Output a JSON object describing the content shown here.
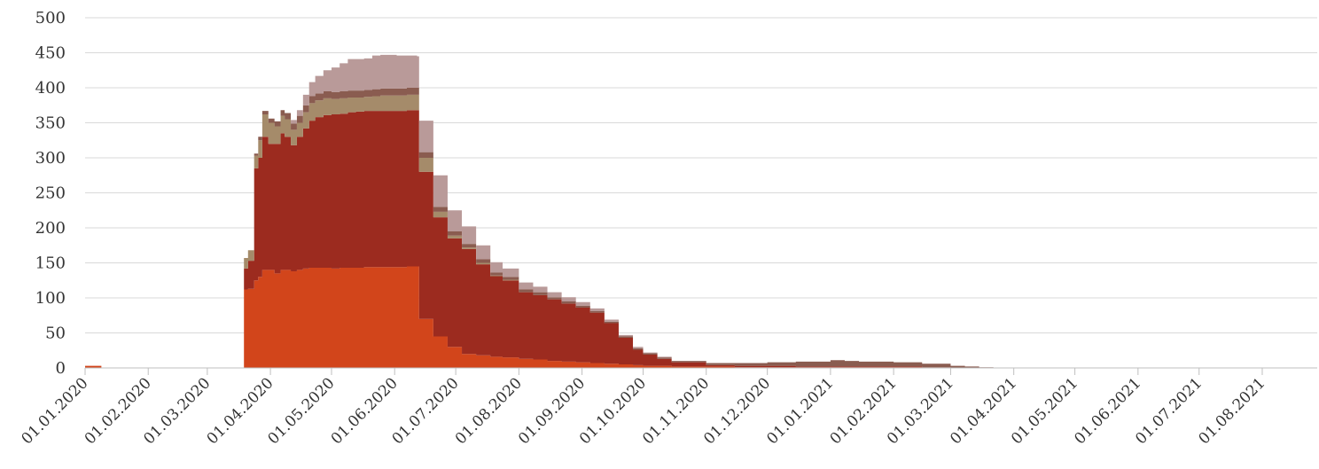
{
  "chart_data": {
    "type": "area",
    "stacked": true,
    "grid": true,
    "legend": "none",
    "x_axis_type": "date",
    "xlim": [
      "2020-01-01",
      "2021-08-28"
    ],
    "ylim": [
      0,
      500
    ],
    "y_ticks": [
      0,
      50,
      100,
      150,
      200,
      250,
      300,
      350,
      400,
      450,
      500
    ],
    "y_tick_labels": [
      "0",
      "50",
      "100",
      "150",
      "200",
      "250",
      "300",
      "350",
      "400",
      "450",
      "500"
    ],
    "x_ticks": [
      "2020-01-01",
      "2020-02-01",
      "2020-03-01",
      "2020-04-01",
      "2020-05-01",
      "2020-06-01",
      "2020-07-01",
      "2020-08-01",
      "2020-09-01",
      "2020-10-01",
      "2020-11-01",
      "2020-12-01",
      "2021-01-01",
      "2021-02-01",
      "2021-03-01",
      "2021-04-01",
      "2021-05-01",
      "2021-06-01",
      "2021-07-01",
      "2021-08-01"
    ],
    "x_tick_labels": [
      "01.01.2020",
      "01.02.2020",
      "01.03.2020",
      "01.04.2020",
      "01.05.2020",
      "01.06.2020",
      "01.07.2020",
      "01.08.2020",
      "01.09.2020",
      "01.10.2020",
      "01.11.2020",
      "01.12.2020",
      "01.01.2021",
      "01.02.2021",
      "01.03.2021",
      "01.04.2021",
      "01.05.2021",
      "01.06.2021",
      "01.07.2021",
      "01.08.2021"
    ],
    "x": [
      "2020-01-01",
      "2020-01-08",
      "2020-01-09",
      "2020-03-18",
      "2020-03-19",
      "2020-03-21",
      "2020-03-24",
      "2020-03-26",
      "2020-03-28",
      "2020-03-31",
      "2020-04-03",
      "2020-04-06",
      "2020-04-08",
      "2020-04-11",
      "2020-04-14",
      "2020-04-17",
      "2020-04-20",
      "2020-04-23",
      "2020-04-27",
      "2020-05-01",
      "2020-05-05",
      "2020-05-09",
      "2020-05-13",
      "2020-05-17",
      "2020-05-21",
      "2020-05-25",
      "2020-05-29",
      "2020-06-02",
      "2020-06-07",
      "2020-06-12",
      "2020-06-13",
      "2020-06-19",
      "2020-06-20",
      "2020-06-26",
      "2020-06-27",
      "2020-07-03",
      "2020-07-04",
      "2020-07-10",
      "2020-07-11",
      "2020-07-17",
      "2020-07-18",
      "2020-07-24",
      "2020-08-01",
      "2020-08-08",
      "2020-08-15",
      "2020-08-22",
      "2020-08-29",
      "2020-09-05",
      "2020-09-12",
      "2020-09-19",
      "2020-09-26",
      "2020-10-01",
      "2020-10-08",
      "2020-10-15",
      "2020-11-01",
      "2020-11-15",
      "2020-12-01",
      "2020-12-15",
      "2021-01-01",
      "2021-01-08",
      "2021-01-15",
      "2021-02-01",
      "2021-02-15",
      "2021-03-01",
      "2021-03-08",
      "2021-03-15",
      "2021-03-22",
      "2021-08-28"
    ],
    "series": [
      {
        "color": "#d2451b",
        "values": [
          3,
          3,
          0,
          0,
          112,
          113,
          125,
          130,
          140,
          140,
          135,
          140,
          140,
          138,
          140,
          142,
          143,
          143,
          143,
          142,
          143,
          143,
          143,
          144,
          144,
          144,
          144,
          144,
          145,
          145,
          70,
          70,
          45,
          45,
          30,
          30,
          20,
          20,
          18,
          18,
          16,
          15,
          13,
          12,
          10,
          9,
          8,
          7,
          6,
          5,
          4,
          3,
          3,
          2,
          2,
          1,
          1,
          1,
          1,
          1,
          1,
          1,
          0,
          0,
          0,
          0,
          0,
          0
        ]
      },
      {
        "color": "#9c2b1f",
        "values": [
          0,
          0,
          0,
          0,
          30,
          40,
          160,
          170,
          190,
          180,
          185,
          195,
          190,
          180,
          190,
          200,
          210,
          215,
          218,
          220,
          220,
          222,
          223,
          223,
          223,
          223,
          223,
          223,
          223,
          223,
          210,
          210,
          170,
          170,
          155,
          155,
          150,
          150,
          130,
          130,
          115,
          110,
          95,
          92,
          88,
          83,
          78,
          72,
          58,
          38,
          22,
          16,
          10,
          6,
          2,
          2,
          2,
          1,
          1,
          1,
          1,
          1,
          1,
          0,
          0,
          0,
          0,
          0
        ]
      },
      {
        "color": "#a58b6a",
        "values": [
          0,
          0,
          0,
          0,
          15,
          15,
          18,
          25,
          32,
          30,
          25,
          25,
          25,
          22,
          20,
          23,
          25,
          24,
          24,
          22,
          22,
          21,
          20,
          20,
          21,
          22,
          22,
          22,
          22,
          22,
          20,
          20,
          8,
          8,
          4,
          4,
          2,
          2,
          2,
          2,
          1,
          1,
          0,
          0,
          0,
          0,
          0,
          0,
          0,
          0,
          0,
          0,
          0,
          0,
          0,
          0,
          0,
          0,
          0,
          0,
          0,
          0,
          0,
          0,
          0,
          0,
          0,
          0
        ]
      },
      {
        "color": "#8a5c50",
        "values": [
          0,
          0,
          0,
          0,
          0,
          0,
          3,
          5,
          5,
          6,
          7,
          8,
          9,
          9,
          10,
          10,
          10,
          10,
          10,
          10,
          10,
          10,
          10,
          10,
          10,
          10,
          10,
          10,
          10,
          10,
          8,
          8,
          7,
          7,
          6,
          6,
          5,
          5,
          5,
          5,
          4,
          4,
          4,
          4,
          3,
          3,
          3,
          2,
          2,
          2,
          2,
          2,
          2,
          2,
          3,
          4,
          5,
          7,
          9,
          8,
          7,
          6,
          5,
          3,
          2,
          1,
          0,
          0
        ]
      },
      {
        "color": "#b99a99",
        "values": [
          0,
          0,
          0,
          0,
          0,
          0,
          0,
          0,
          0,
          0,
          0,
          0,
          0,
          5,
          8,
          15,
          20,
          25,
          30,
          35,
          40,
          45,
          45,
          45,
          48,
          48,
          48,
          47,
          46,
          45,
          45,
          45,
          45,
          45,
          30,
          30,
          25,
          25,
          20,
          20,
          15,
          12,
          10,
          8,
          7,
          6,
          5,
          4,
          3,
          2,
          2,
          1,
          1,
          0,
          0,
          0,
          0,
          0,
          0,
          0,
          0,
          0,
          0,
          0,
          0,
          0,
          0,
          0
        ]
      }
    ]
  }
}
